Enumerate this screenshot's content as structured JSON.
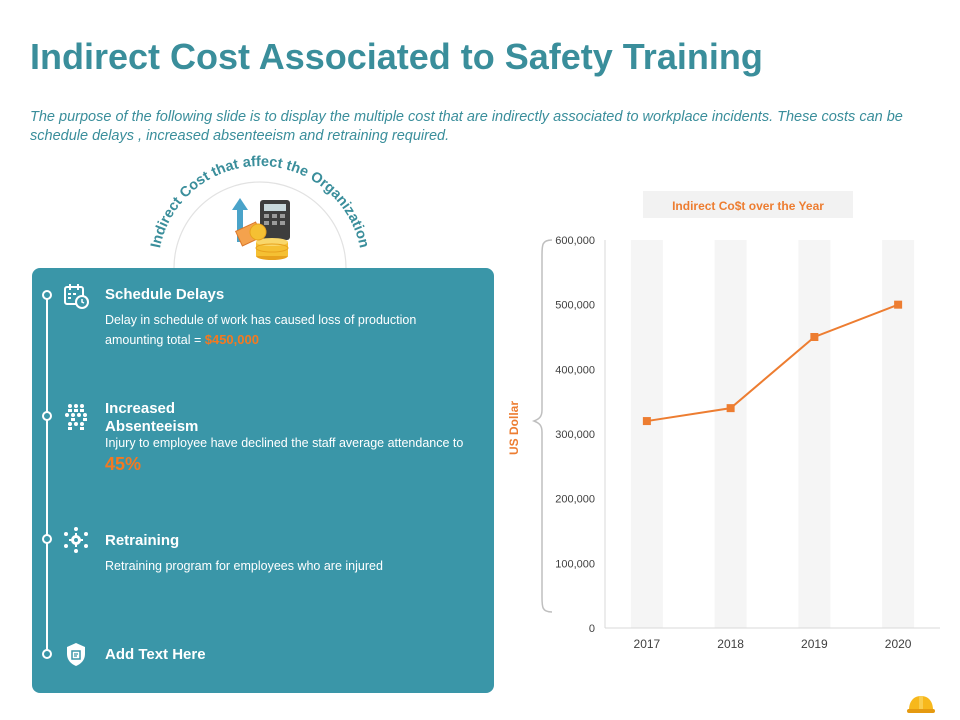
{
  "title": "Indirect Cost Associated to Safety Training",
  "subtitle": "The purpose of the following slide is to display the multiple cost that are indirectly associated to workplace incidents. These costs can be schedule delays , increased absenteeism and retraining required.",
  "arc_label": "Indirect Cost that affect the Organization",
  "colors": {
    "accent": "#3a8e9b",
    "panel": "#3a96a8",
    "highlight": "#f47920",
    "line": "#ed7d31"
  },
  "items": [
    {
      "title": "Schedule Delays",
      "desc": "Delay in schedule of work has caused loss of production amounting total = ",
      "highlight": "$450,000",
      "icon": "calendar-clock-icon"
    },
    {
      "title": "Increased Absenteeism",
      "desc": "Injury to employee have declined the staff average attendance to ",
      "highlight": "45%",
      "icon": "people-group-icon"
    },
    {
      "title": "Retraining",
      "desc": "Retraining program for employees who are injured",
      "icon": "gear-people-icon"
    },
    {
      "title": "Add Text Here",
      "icon": "shield-icon"
    }
  ],
  "chart_data": {
    "type": "line",
    "title": "Indirect Co$t over the Year",
    "ylabel": "US Dollar",
    "xlabel": "",
    "categories": [
      "2017",
      "2018",
      "2019",
      "2020"
    ],
    "values": [
      320000,
      340000,
      450000,
      500000
    ],
    "ylim": [
      0,
      600000
    ],
    "yticks": [
      "0",
      "100,000",
      "200,000",
      "300,000",
      "400,000",
      "500,000",
      "600,000"
    ],
    "grid": false,
    "legend": "none"
  }
}
